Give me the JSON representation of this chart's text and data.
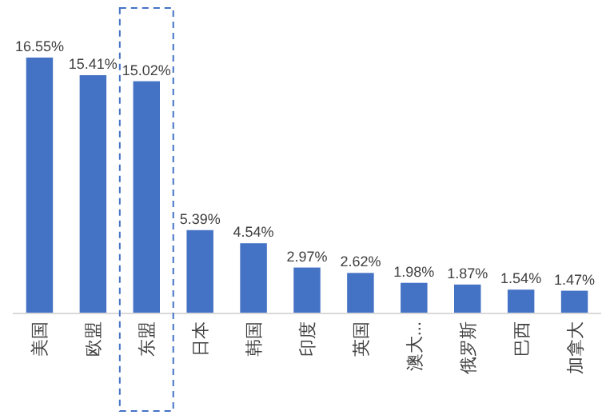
{
  "chart_data": {
    "type": "bar",
    "categories": [
      "美国",
      "欧盟",
      "东盟",
      "日本",
      "韩国",
      "印度",
      "英国",
      "澳大...",
      "俄罗斯",
      "巴西",
      "加拿大"
    ],
    "values": [
      16.55,
      15.41,
      15.02,
      5.39,
      4.54,
      2.97,
      2.62,
      1.98,
      1.87,
      1.54,
      1.47
    ],
    "value_labels": [
      "16.55%",
      "15.41%",
      "15.02%",
      "5.39%",
      "4.54%",
      "2.97%",
      "2.62%",
      "1.98%",
      "1.87%",
      "1.54%",
      "1.47%"
    ],
    "color": "#4472c4"
  }
}
